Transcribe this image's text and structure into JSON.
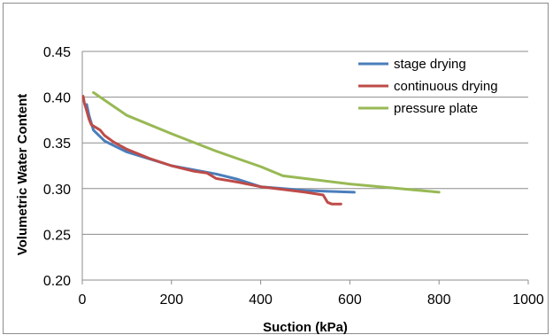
{
  "chart_data": {
    "type": "line",
    "title": "",
    "xlabel": "Suction (kPa)",
    "ylabel": "Volumetric Water Content",
    "xlim": [
      0,
      1000
    ],
    "ylim": [
      0.2,
      0.45
    ],
    "x_ticks": [
      0,
      200,
      400,
      600,
      800,
      1000
    ],
    "y_ticks": [
      0.2,
      0.25,
      0.3,
      0.35,
      0.4,
      0.45
    ],
    "y_tick_labels": [
      "0.20",
      "0.25",
      "0.30",
      "0.35",
      "0.40",
      "0.45"
    ],
    "grid": "horizontal",
    "legend_position": "top-right",
    "series": [
      {
        "name": "stage drying",
        "color": "#4a7ebb",
        "x": [
          10,
          15,
          25,
          50,
          100,
          200,
          300,
          350,
          400,
          450,
          500,
          550,
          610
        ],
        "y": [
          0.392,
          0.38,
          0.364,
          0.352,
          0.34,
          0.325,
          0.316,
          0.31,
          0.302,
          0.3,
          0.298,
          0.297,
          0.296
        ]
      },
      {
        "name": "continuous drying",
        "color": "#be4b48",
        "x": [
          2,
          5,
          10,
          15,
          20,
          30,
          40,
          50,
          70,
          100,
          150,
          200,
          250,
          280,
          300,
          350,
          400,
          450,
          500,
          540,
          550,
          560,
          580
        ],
        "y": [
          0.401,
          0.393,
          0.385,
          0.376,
          0.37,
          0.367,
          0.364,
          0.358,
          0.351,
          0.343,
          0.333,
          0.325,
          0.319,
          0.317,
          0.311,
          0.307,
          0.302,
          0.299,
          0.296,
          0.293,
          0.285,
          0.283,
          0.283
        ]
      },
      {
        "name": "pressure plate",
        "color": "#98b954",
        "x": [
          25,
          100,
          200,
          300,
          400,
          450,
          600,
          800
        ],
        "y": [
          0.405,
          0.38,
          0.36,
          0.341,
          0.324,
          0.314,
          0.305,
          0.296
        ]
      }
    ]
  }
}
